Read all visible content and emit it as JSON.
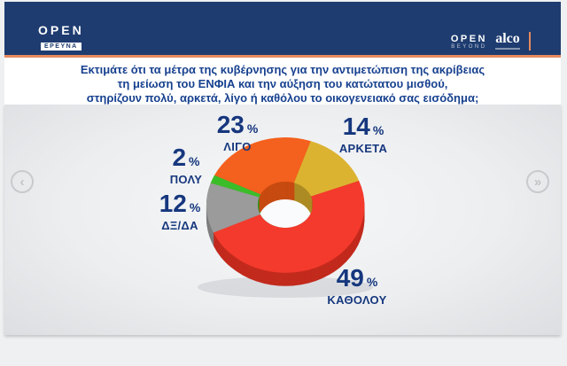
{
  "header": {
    "channel_logo": "OPEN",
    "channel_badge": "ΕΡΕΥΝΑ",
    "beyond_logo": "OPEN",
    "beyond_sub": "BEYOND",
    "alco_logo": "alco"
  },
  "question": {
    "line1": "Εκτιμάτε ότι τα μέτρα της κυβέρνησης για την αντιμετώπιση της ακρίβειας",
    "line2": "τη μείωση του ΕΝΦΙΑ και την αύξηση του κατώτατου μισθού,",
    "line3": "στηρίζουν πολύ, αρκετά, λίγο ή καθόλου το οικογενειακό σας εισόδημα;"
  },
  "nav": {
    "prev_glyph": "‹",
    "next_glyph": "»"
  },
  "theme": {
    "header-bg": "#1e3c70",
    "rule-orange": "#e78a5e",
    "question-blue": "#17418f",
    "label-blue": "#16377e",
    "panel-light": "#f6f7f8",
    "panel-dark": "#dcdee1",
    "page-bg": "#eef0f1"
  },
  "chart_data": {
    "type": "pie",
    "subtype": "3d-donut",
    "title": "",
    "categories": [
      "ΛΙΓΟ",
      "ΑΡΚΕΤΑ",
      "ΚΑΘΟΛΟΥ",
      "ΔΞ/ΔΑ",
      "ΠΟΛΥ"
    ],
    "values": [
      23,
      14,
      49,
      12,
      2
    ],
    "unit": "%",
    "direction": "clockwise",
    "start_angle_deg": 296,
    "colors": [
      "#f4601d",
      "#dcb331",
      "#f43a2c",
      "#9b9b9b",
      "#3bbd2a"
    ],
    "side_colors": [
      "#c74a10",
      "#ad8b24",
      "#c22a1d",
      "#7e7e7e",
      "#2b9419"
    ],
    "label_color": "#16377e",
    "legend_position": "around-slices"
  }
}
